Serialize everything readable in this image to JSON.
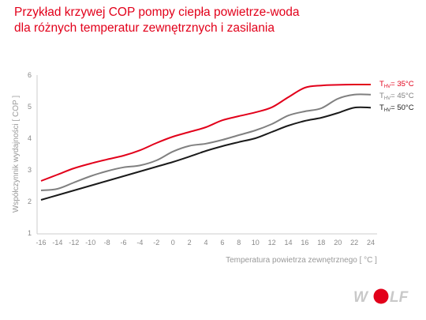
{
  "title_lines": [
    "Przykład krzywej COP pompy ciepła powietrze-woda",
    "dla różnych temperatur zewnętrznych i zasilania"
  ],
  "brand": {
    "name": "WOLF",
    "accent": "#e2001a"
  },
  "chart_data": {
    "type": "line",
    "xlabel": "Temperatura powietrza zewnętrznego [ °C ]",
    "ylabel": "Współczynnik wydajności [ COP ]",
    "xlim": [
      -16,
      24
    ],
    "ylim": [
      1,
      6
    ],
    "x_ticks": [
      -16,
      -14,
      -12,
      -10,
      -8,
      -6,
      -4,
      -2,
      0,
      2,
      4,
      6,
      8,
      10,
      12,
      14,
      16,
      18,
      20,
      22,
      24
    ],
    "y_ticks": [
      1,
      2,
      3,
      4,
      5,
      6
    ],
    "grid": false,
    "legend_position": "right",
    "x": [
      -16,
      -14,
      -12,
      -10,
      -8,
      -6,
      -4,
      -2,
      0,
      2,
      4,
      6,
      8,
      10,
      12,
      14,
      16,
      18,
      20,
      22,
      24
    ],
    "series": [
      {
        "name": "T",
        "name_sub": "HV",
        "name_suffix": "= 35°C",
        "color": "#e2001a",
        "values": [
          2.65,
          2.85,
          3.05,
          3.2,
          3.33,
          3.45,
          3.62,
          3.85,
          4.05,
          4.2,
          4.35,
          4.57,
          4.7,
          4.82,
          4.98,
          5.3,
          5.6,
          5.67,
          5.69,
          5.7,
          5.7
        ]
      },
      {
        "name": "T",
        "name_sub": "HV",
        "name_suffix": "= 45°C",
        "color": "#808080",
        "values": [
          2.35,
          2.4,
          2.6,
          2.8,
          2.96,
          3.08,
          3.14,
          3.3,
          3.58,
          3.76,
          3.83,
          3.95,
          4.1,
          4.25,
          4.45,
          4.72,
          4.85,
          4.95,
          5.25,
          5.38,
          5.38
        ]
      },
      {
        "name": "T",
        "name_sub": "HV",
        "name_suffix": "= 50°C",
        "color": "#1a1a1a",
        "values": [
          2.05,
          2.2,
          2.35,
          2.5,
          2.65,
          2.8,
          2.95,
          3.1,
          3.25,
          3.42,
          3.6,
          3.75,
          3.88,
          4.0,
          4.2,
          4.4,
          4.55,
          4.65,
          4.8,
          4.97,
          4.97
        ]
      }
    ]
  }
}
